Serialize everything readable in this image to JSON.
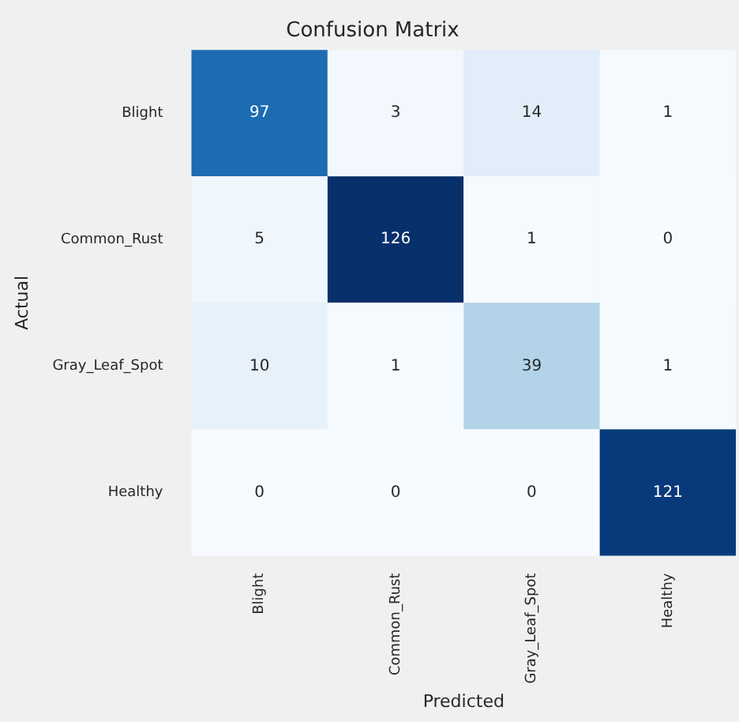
{
  "chart_data": {
    "type": "heatmap",
    "title": "Confusion Matrix",
    "xlabel": "Predicted",
    "ylabel": "Actual",
    "categories": [
      "Blight",
      "Common_Rust",
      "Gray_Leaf_Spot",
      "Healthy"
    ],
    "y_categories": [
      "Blight",
      "Common_Rust",
      "Gray_Leaf_Spot",
      "Healthy"
    ],
    "cells": [
      [
        97,
        3,
        14,
        1
      ],
      [
        5,
        126,
        1,
        0
      ],
      [
        10,
        1,
        39,
        1
      ],
      [
        0,
        0,
        0,
        121
      ]
    ],
    "data_labels": true
  }
}
